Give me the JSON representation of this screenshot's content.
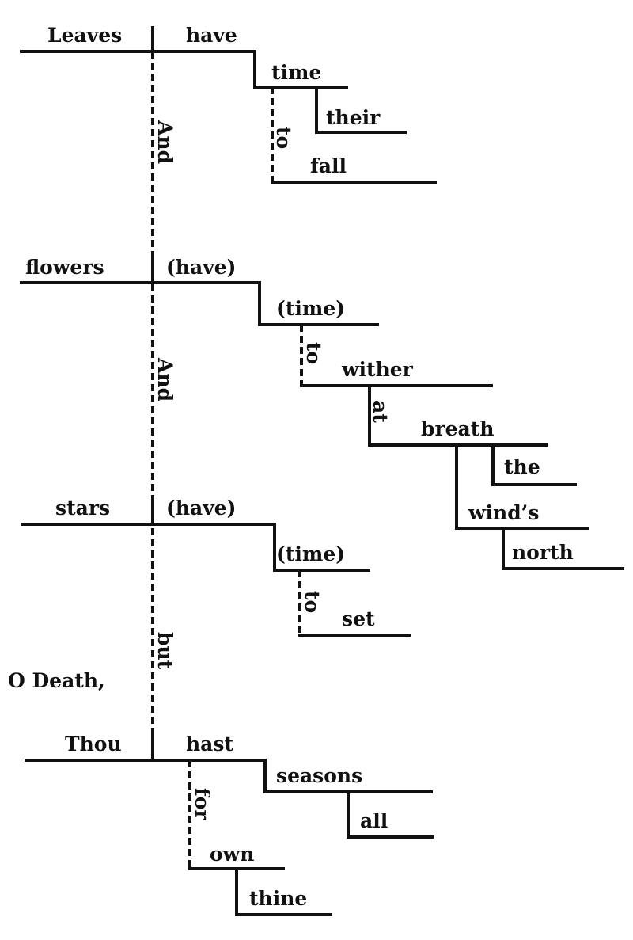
{
  "words": {
    "leaves": "Leaves",
    "have1": "have",
    "time1": "time",
    "their": "their",
    "to1": "to",
    "fall": "fall",
    "and1": "And",
    "flowers": "flowers",
    "have2": "(have)",
    "time2": "(time)",
    "to2": "to",
    "wither": "wither",
    "at": "at",
    "breath": "breath",
    "the": "the",
    "winds": "wind’s",
    "north": "north",
    "and2": "And",
    "stars": "stars",
    "have3": "(have)",
    "time3": "(time)",
    "to3": "to",
    "set": "set",
    "but": "but",
    "odeath": "O Death,",
    "thou": "Thou",
    "hast": "hast",
    "seasons": "seasons",
    "all": "all",
    "for": "for",
    "own": "own",
    "thine": "thine"
  }
}
